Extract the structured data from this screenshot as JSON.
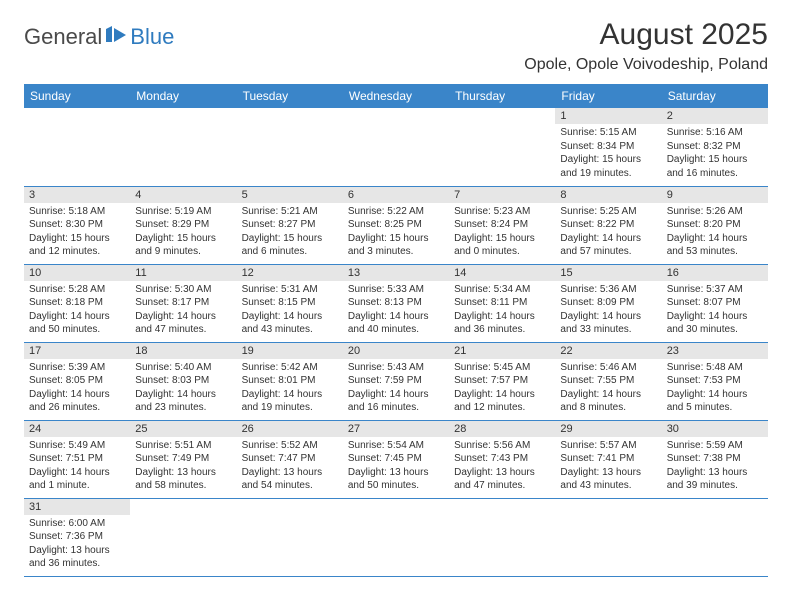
{
  "logo": {
    "text1": "General",
    "text2": "Blue"
  },
  "title": "August 2025",
  "location": "Opole, Opole Voivodeship, Poland",
  "colors": {
    "header_bg": "#3a85c9",
    "header_text": "#ffffff",
    "daynum_bg": "#e6e6e6",
    "border": "#3a85c9",
    "logo_gray": "#4a4a4a",
    "logo_blue": "#2f7bbf"
  },
  "weekdays": [
    "Sunday",
    "Monday",
    "Tuesday",
    "Wednesday",
    "Thursday",
    "Friday",
    "Saturday"
  ],
  "weeks": [
    [
      null,
      null,
      null,
      null,
      null,
      {
        "d": "1",
        "sr": "Sunrise: 5:15 AM",
        "ss": "Sunset: 8:34 PM",
        "dl": "Daylight: 15 hours and 19 minutes."
      },
      {
        "d": "2",
        "sr": "Sunrise: 5:16 AM",
        "ss": "Sunset: 8:32 PM",
        "dl": "Daylight: 15 hours and 16 minutes."
      }
    ],
    [
      {
        "d": "3",
        "sr": "Sunrise: 5:18 AM",
        "ss": "Sunset: 8:30 PM",
        "dl": "Daylight: 15 hours and 12 minutes."
      },
      {
        "d": "4",
        "sr": "Sunrise: 5:19 AM",
        "ss": "Sunset: 8:29 PM",
        "dl": "Daylight: 15 hours and 9 minutes."
      },
      {
        "d": "5",
        "sr": "Sunrise: 5:21 AM",
        "ss": "Sunset: 8:27 PM",
        "dl": "Daylight: 15 hours and 6 minutes."
      },
      {
        "d": "6",
        "sr": "Sunrise: 5:22 AM",
        "ss": "Sunset: 8:25 PM",
        "dl": "Daylight: 15 hours and 3 minutes."
      },
      {
        "d": "7",
        "sr": "Sunrise: 5:23 AM",
        "ss": "Sunset: 8:24 PM",
        "dl": "Daylight: 15 hours and 0 minutes."
      },
      {
        "d": "8",
        "sr": "Sunrise: 5:25 AM",
        "ss": "Sunset: 8:22 PM",
        "dl": "Daylight: 14 hours and 57 minutes."
      },
      {
        "d": "9",
        "sr": "Sunrise: 5:26 AM",
        "ss": "Sunset: 8:20 PM",
        "dl": "Daylight: 14 hours and 53 minutes."
      }
    ],
    [
      {
        "d": "10",
        "sr": "Sunrise: 5:28 AM",
        "ss": "Sunset: 8:18 PM",
        "dl": "Daylight: 14 hours and 50 minutes."
      },
      {
        "d": "11",
        "sr": "Sunrise: 5:30 AM",
        "ss": "Sunset: 8:17 PM",
        "dl": "Daylight: 14 hours and 47 minutes."
      },
      {
        "d": "12",
        "sr": "Sunrise: 5:31 AM",
        "ss": "Sunset: 8:15 PM",
        "dl": "Daylight: 14 hours and 43 minutes."
      },
      {
        "d": "13",
        "sr": "Sunrise: 5:33 AM",
        "ss": "Sunset: 8:13 PM",
        "dl": "Daylight: 14 hours and 40 minutes."
      },
      {
        "d": "14",
        "sr": "Sunrise: 5:34 AM",
        "ss": "Sunset: 8:11 PM",
        "dl": "Daylight: 14 hours and 36 minutes."
      },
      {
        "d": "15",
        "sr": "Sunrise: 5:36 AM",
        "ss": "Sunset: 8:09 PM",
        "dl": "Daylight: 14 hours and 33 minutes."
      },
      {
        "d": "16",
        "sr": "Sunrise: 5:37 AM",
        "ss": "Sunset: 8:07 PM",
        "dl": "Daylight: 14 hours and 30 minutes."
      }
    ],
    [
      {
        "d": "17",
        "sr": "Sunrise: 5:39 AM",
        "ss": "Sunset: 8:05 PM",
        "dl": "Daylight: 14 hours and 26 minutes."
      },
      {
        "d": "18",
        "sr": "Sunrise: 5:40 AM",
        "ss": "Sunset: 8:03 PM",
        "dl": "Daylight: 14 hours and 23 minutes."
      },
      {
        "d": "19",
        "sr": "Sunrise: 5:42 AM",
        "ss": "Sunset: 8:01 PM",
        "dl": "Daylight: 14 hours and 19 minutes."
      },
      {
        "d": "20",
        "sr": "Sunrise: 5:43 AM",
        "ss": "Sunset: 7:59 PM",
        "dl": "Daylight: 14 hours and 16 minutes."
      },
      {
        "d": "21",
        "sr": "Sunrise: 5:45 AM",
        "ss": "Sunset: 7:57 PM",
        "dl": "Daylight: 14 hours and 12 minutes."
      },
      {
        "d": "22",
        "sr": "Sunrise: 5:46 AM",
        "ss": "Sunset: 7:55 PM",
        "dl": "Daylight: 14 hours and 8 minutes."
      },
      {
        "d": "23",
        "sr": "Sunrise: 5:48 AM",
        "ss": "Sunset: 7:53 PM",
        "dl": "Daylight: 14 hours and 5 minutes."
      }
    ],
    [
      {
        "d": "24",
        "sr": "Sunrise: 5:49 AM",
        "ss": "Sunset: 7:51 PM",
        "dl": "Daylight: 14 hours and 1 minute."
      },
      {
        "d": "25",
        "sr": "Sunrise: 5:51 AM",
        "ss": "Sunset: 7:49 PM",
        "dl": "Daylight: 13 hours and 58 minutes."
      },
      {
        "d": "26",
        "sr": "Sunrise: 5:52 AM",
        "ss": "Sunset: 7:47 PM",
        "dl": "Daylight: 13 hours and 54 minutes."
      },
      {
        "d": "27",
        "sr": "Sunrise: 5:54 AM",
        "ss": "Sunset: 7:45 PM",
        "dl": "Daylight: 13 hours and 50 minutes."
      },
      {
        "d": "28",
        "sr": "Sunrise: 5:56 AM",
        "ss": "Sunset: 7:43 PM",
        "dl": "Daylight: 13 hours and 47 minutes."
      },
      {
        "d": "29",
        "sr": "Sunrise: 5:57 AM",
        "ss": "Sunset: 7:41 PM",
        "dl": "Daylight: 13 hours and 43 minutes."
      },
      {
        "d": "30",
        "sr": "Sunrise: 5:59 AM",
        "ss": "Sunset: 7:38 PM",
        "dl": "Daylight: 13 hours and 39 minutes."
      }
    ],
    [
      {
        "d": "31",
        "sr": "Sunrise: 6:00 AM",
        "ss": "Sunset: 7:36 PM",
        "dl": "Daylight: 13 hours and 36 minutes."
      },
      null,
      null,
      null,
      null,
      null,
      null
    ]
  ]
}
